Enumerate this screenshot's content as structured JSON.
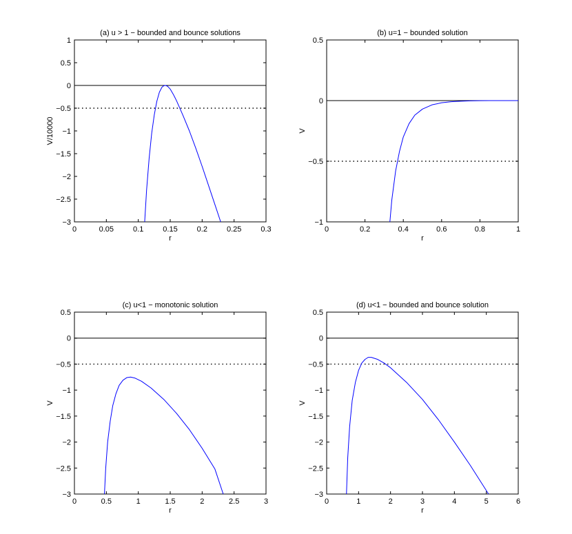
{
  "chart_data": [
    {
      "type": "line",
      "title": "(a) u > 1 − bounded and bounce solutions",
      "xlabel": "r",
      "ylabel": "V/10000",
      "xlim": [
        0,
        0.3
      ],
      "ylim": [
        -3,
        1
      ],
      "xticks": [
        0,
        0.05,
        0.1,
        0.15,
        0.2,
        0.25,
        0.3
      ],
      "xtick_labels": [
        "0",
        "0.05",
        "0.1",
        "0.15",
        "0.2",
        "0.25",
        "0.3"
      ],
      "yticks": [
        -3,
        -2.5,
        -2,
        -1.5,
        -1,
        -0.5,
        0,
        0.5,
        1
      ],
      "ytick_labels": [
        "−3",
        "−2.5",
        "−2",
        "−1.5",
        "−1",
        "−0.5",
        "0",
        "0.5",
        "1"
      ],
      "zero_line": 0,
      "dotted_level": -0.5,
      "curve_color": "#0000ff",
      "series": [
        {
          "x": [
            0.11,
            0.113,
            0.117,
            0.121,
            0.125,
            0.129,
            0.133,
            0.137,
            0.14,
            0.143,
            0.146,
            0.15,
            0.155,
            0.16,
            0.17,
            0.18,
            0.19,
            0.2,
            0.21,
            0.22,
            0.229
          ],
          "y": [
            -3.0,
            -2.3,
            -1.6,
            -1.05,
            -0.65,
            -0.35,
            -0.15,
            -0.04,
            -0.005,
            0.0,
            -0.02,
            -0.08,
            -0.2,
            -0.34,
            -0.66,
            -1.0,
            -1.38,
            -1.78,
            -2.2,
            -2.62,
            -3.0
          ]
        }
      ]
    },
    {
      "type": "line",
      "title": "(b) u=1 − bounded solution",
      "xlabel": "r",
      "ylabel": "V",
      "xlim": [
        0,
        1
      ],
      "ylim": [
        -1,
        0.5
      ],
      "xticks": [
        0,
        0.2,
        0.4,
        0.6,
        0.8,
        1
      ],
      "xtick_labels": [
        "0",
        "0.2",
        "0.4",
        "0.6",
        "0.8",
        "1"
      ],
      "yticks": [
        -1,
        -0.5,
        0,
        0.5
      ],
      "ytick_labels": [
        "−1",
        "−0.5",
        "0",
        "0.5"
      ],
      "zero_line": 0,
      "dotted_level": -0.5,
      "curve_color": "#0000ff",
      "series": [
        {
          "x": [
            0.33,
            0.34,
            0.36,
            0.38,
            0.4,
            0.43,
            0.46,
            0.5,
            0.55,
            0.6,
            0.65,
            0.7,
            0.75,
            0.8,
            0.85,
            0.9,
            1.0
          ],
          "y": [
            -1.0,
            -0.82,
            -0.58,
            -0.42,
            -0.3,
            -0.19,
            -0.12,
            -0.07,
            -0.035,
            -0.018,
            -0.009,
            -0.005,
            -0.002,
            -0.001,
            0.0,
            0.0,
            0.0
          ]
        }
      ]
    },
    {
      "type": "line",
      "title": "(c) u<1 − monotonic solution",
      "xlabel": "r",
      "ylabel": "V",
      "xlim": [
        0,
        3
      ],
      "ylim": [
        -3,
        0.5
      ],
      "xticks": [
        0,
        0.5,
        1,
        1.5,
        2,
        2.5,
        3
      ],
      "xtick_labels": [
        "0",
        "0.5",
        "1",
        "1.5",
        "2",
        "2.5",
        "3"
      ],
      "yticks": [
        -3,
        -2.5,
        -2,
        -1.5,
        -1,
        -0.5,
        0,
        0.5
      ],
      "ytick_labels": [
        "−3",
        "−2.5",
        "−2",
        "−1.5",
        "−1",
        "−0.5",
        "0",
        "0.5"
      ],
      "zero_line": 0,
      "dotted_level": -0.5,
      "curve_color": "#0000ff",
      "series": [
        {
          "x": [
            0.47,
            0.49,
            0.52,
            0.56,
            0.6,
            0.65,
            0.7,
            0.76,
            0.82,
            0.88,
            0.95,
            1.05,
            1.2,
            1.4,
            1.6,
            1.8,
            2.0,
            2.2,
            2.33
          ],
          "y": [
            -3.0,
            -2.5,
            -2.0,
            -1.6,
            -1.3,
            -1.07,
            -0.91,
            -0.81,
            -0.76,
            -0.75,
            -0.77,
            -0.83,
            -0.96,
            -1.18,
            -1.45,
            -1.76,
            -2.12,
            -2.52,
            -3.0
          ]
        }
      ]
    },
    {
      "type": "line",
      "title": "(d) u<1 − bounded and bounce solution",
      "xlabel": "r",
      "ylabel": "V",
      "xlim": [
        0,
        6
      ],
      "ylim": [
        -3,
        0.5
      ],
      "xticks": [
        0,
        1,
        2,
        3,
        4,
        5,
        6
      ],
      "xtick_labels": [
        "0",
        "1",
        "2",
        "3",
        "4",
        "5",
        "6"
      ],
      "yticks": [
        -3,
        -2.5,
        -2,
        -1.5,
        -1,
        -0.5,
        0,
        0.5
      ],
      "ytick_labels": [
        "−3",
        "−2.5",
        "−2",
        "−1.5",
        "−1",
        "−0.5",
        "0",
        "0.5"
      ],
      "zero_line": 0,
      "dotted_level": -0.5,
      "curve_color": "#0000ff",
      "series": [
        {
          "x": [
            0.62,
            0.66,
            0.72,
            0.8,
            0.9,
            1.0,
            1.1,
            1.2,
            1.3,
            1.4,
            1.6,
            1.8,
            2.0,
            2.5,
            3.0,
            3.5,
            4.0,
            4.5,
            5.07
          ],
          "y": [
            -3.0,
            -2.3,
            -1.7,
            -1.2,
            -0.85,
            -0.62,
            -0.48,
            -0.41,
            -0.37,
            -0.37,
            -0.41,
            -0.48,
            -0.57,
            -0.85,
            -1.18,
            -1.57,
            -2.0,
            -2.45,
            -3.0
          ]
        }
      ]
    }
  ]
}
